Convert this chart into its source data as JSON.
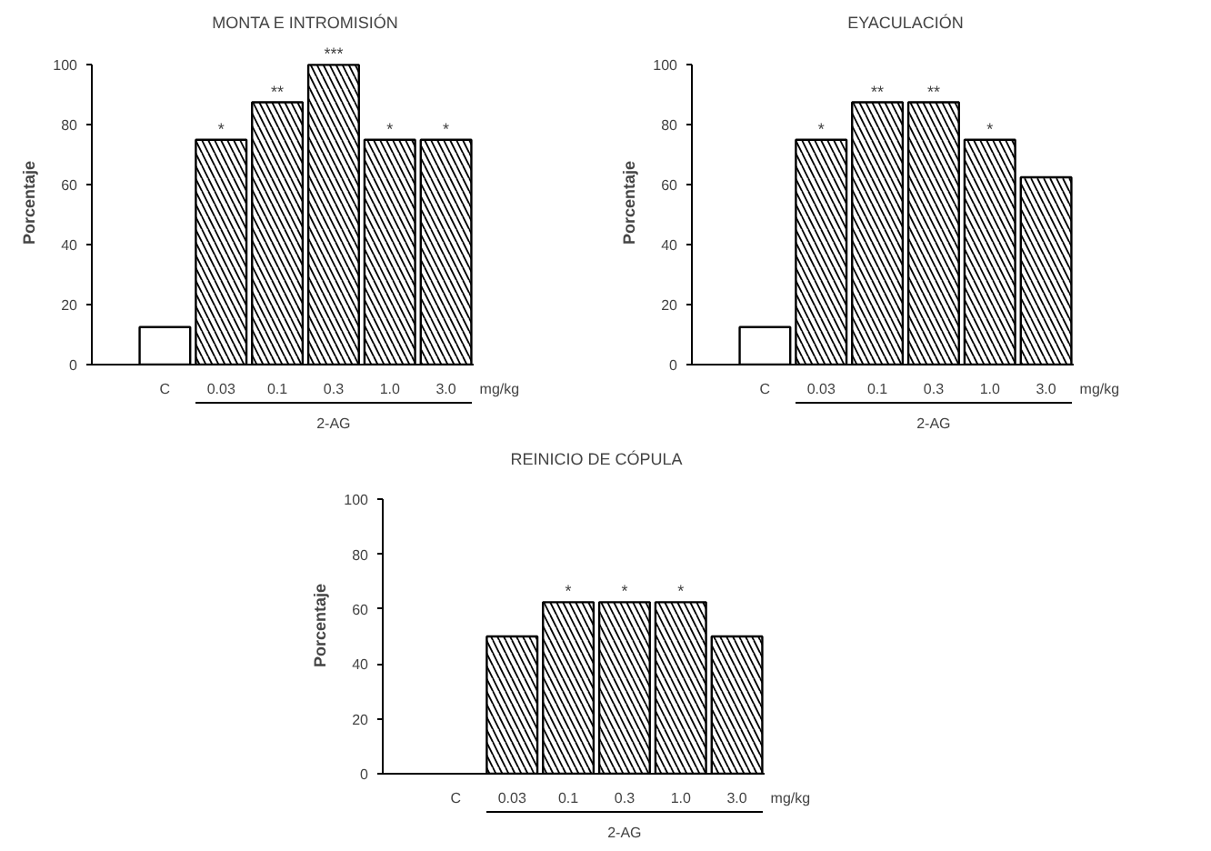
{
  "chart_data": [
    {
      "type": "bar",
      "title": "MONTA E INTROMISIÓN",
      "ylabel": "Porcentaje",
      "xlabel": "2-AG",
      "categories": [
        "C",
        "0.03",
        "0.1",
        "0.3",
        "1.0",
        "3.0"
      ],
      "values": [
        12.5,
        75,
        87.5,
        100,
        75,
        75
      ],
      "colors": [
        "#ffffff",
        "#000000",
        "#000000",
        "#000000",
        "#000000",
        "#000000"
      ],
      "ylim": [
        0,
        100
      ],
      "yticks": [
        0,
        20,
        40,
        60,
        80,
        100
      ],
      "grid": false,
      "annotations": [
        {
          "text": "*",
          "x": "0.03",
          "y": 75
        },
        {
          "text": "**",
          "x": "0.1",
          "y": 87.5
        },
        {
          "text": "***",
          "x": "0.3",
          "y": 100
        },
        {
          "text": "*",
          "x": "1.0",
          "y": 75
        },
        {
          "text": "*",
          "x": "3.0",
          "y": 75
        },
        "mg/kg"
      ]
    },
    {
      "type": "bar",
      "title": "EYACULACIÓN",
      "ylabel": "Porcentaje",
      "xlabel": "2-AG",
      "categories": [
        "C",
        "0.03",
        "0.1",
        "0.3",
        "1.0",
        "3.0"
      ],
      "values": [
        12.5,
        75,
        87.5,
        87.5,
        75,
        62.5
      ],
      "colors": [
        "#ffffff",
        "#000000",
        "#000000",
        "#000000",
        "#000000",
        "#000000"
      ],
      "ylim": [
        0,
        100
      ],
      "yticks": [
        0,
        20,
        40,
        60,
        80,
        100
      ],
      "grid": false,
      "annotations": [
        {
          "text": "*",
          "x": "0.03",
          "y": 75
        },
        {
          "text": "**",
          "x": "0.1",
          "y": 87.5
        },
        {
          "text": "**",
          "x": "0.3",
          "y": 87.5
        },
        {
          "text": "*",
          "x": "1.0",
          "y": 75
        },
        "mg/kg"
      ]
    },
    {
      "type": "bar",
      "title": "REINICIO DE CÓPULA",
      "ylabel": "Porcentaje",
      "xlabel": "2-AG",
      "categories": [
        "C",
        "0.03",
        "0.1",
        "0.3",
        "1.0",
        "3.0"
      ],
      "values": [
        0,
        50,
        62.5,
        62.5,
        62.5,
        50
      ],
      "colors": [
        "#ffffff",
        "#000000",
        "#000000",
        "#000000",
        "#000000",
        "#000000"
      ],
      "ylim": [
        0,
        100
      ],
      "yticks": [
        0,
        20,
        40,
        60,
        80,
        100
      ],
      "grid": false,
      "annotations": [
        {
          "text": "*",
          "x": "0.1",
          "y": 62.5
        },
        {
          "text": "*",
          "x": "0.3",
          "y": 62.5
        },
        {
          "text": "*",
          "x": "1.0",
          "y": 62.5
        },
        "mg/kg"
      ]
    }
  ]
}
